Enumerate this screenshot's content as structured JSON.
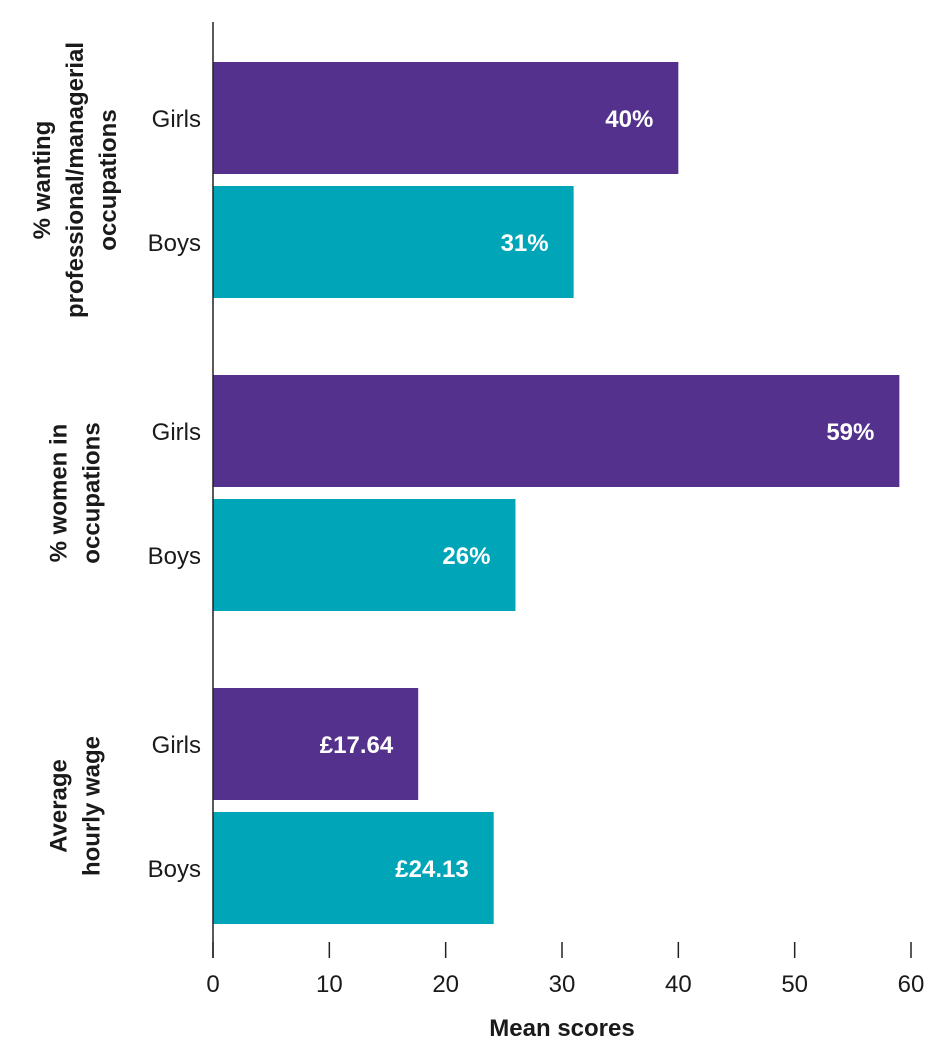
{
  "chart_data": {
    "type": "bar",
    "orientation": "horizontal",
    "xlabel": "Mean scores",
    "xlim": [
      0,
      60
    ],
    "xticks": [
      0,
      10,
      20,
      30,
      40,
      50,
      60
    ],
    "grid": false,
    "colors": {
      "Girls": "#53318d",
      "Boys": "#00a6b8"
    },
    "groups": [
      {
        "label_lines": [
          "% wanting",
          "professional/managerial",
          "occupations"
        ],
        "bars": [
          {
            "category": "Girls",
            "value": 40,
            "label": "40%"
          },
          {
            "category": "Boys",
            "value": 31,
            "label": "31%"
          }
        ]
      },
      {
        "label_lines": [
          "% women in",
          "occupations"
        ],
        "bars": [
          {
            "category": "Girls",
            "value": 59,
            "label": "59%"
          },
          {
            "category": "Boys",
            "value": 26,
            "label": "26%"
          }
        ]
      },
      {
        "label_lines": [
          "Average",
          "hourly wage"
        ],
        "bars": [
          {
            "category": "Girls",
            "value": 17.64,
            "label": "£17.64"
          },
          {
            "category": "Boys",
            "value": 24.13,
            "label": "£24.13"
          }
        ]
      }
    ]
  }
}
